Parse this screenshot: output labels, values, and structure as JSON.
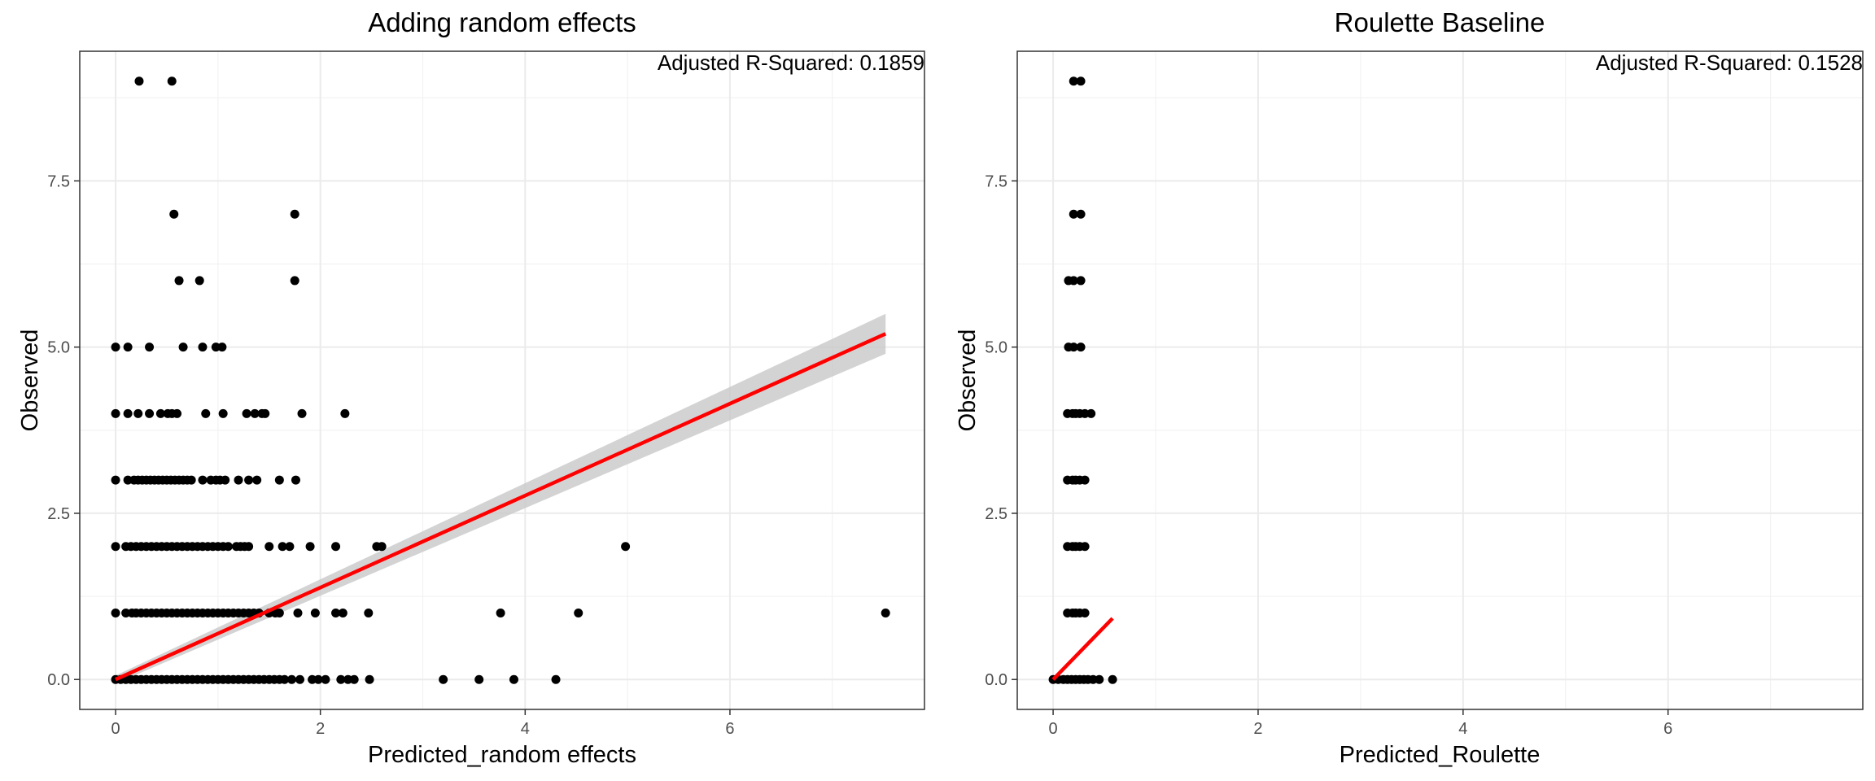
{
  "chart_data": [
    {
      "type": "scatter",
      "title": "Adding random effects",
      "xlabel": "Predicted_random effects",
      "ylabel": "Observed",
      "annotation": "Adjusted R-Squared: 0.1859",
      "xlim": [
        -0.35,
        7.9
      ],
      "ylim": [
        -0.45,
        9.45
      ],
      "xticks": [
        0,
        2,
        4,
        6
      ],
      "xtick_labels": [
        "0",
        "2",
        "4",
        "6"
      ],
      "yticks": [
        0,
        2.5,
        5,
        7.5
      ],
      "ytick_labels": [
        "0.0",
        "2.5",
        "5.0",
        "7.5"
      ],
      "grid": true,
      "point_color": "#000000",
      "fit": {
        "x": [
          0,
          7.52
        ],
        "y": [
          0,
          5.2
        ],
        "color": "#ff0000",
        "ci_color": "#c8c8c8",
        "ci_lower": [
          -0.06,
          4.9
        ],
        "ci_upper": [
          0.06,
          5.5
        ]
      },
      "points": [
        [
          0.23,
          9
        ],
        [
          0.55,
          9
        ],
        [
          0.57,
          7
        ],
        [
          1.75,
          7
        ],
        [
          0.62,
          6
        ],
        [
          0.82,
          6
        ],
        [
          1.75,
          6
        ],
        [
          0,
          5
        ],
        [
          0.12,
          5
        ],
        [
          0.33,
          5
        ],
        [
          0.66,
          5
        ],
        [
          0.85,
          5
        ],
        [
          0.98,
          5
        ],
        [
          1.04,
          5
        ],
        [
          0,
          4
        ],
        [
          0.12,
          4
        ],
        [
          0.22,
          4
        ],
        [
          0.33,
          4
        ],
        [
          0.44,
          4
        ],
        [
          0.51,
          4
        ],
        [
          0.55,
          4
        ],
        [
          0.6,
          4
        ],
        [
          0.88,
          4
        ],
        [
          1.05,
          4
        ],
        [
          1.28,
          4
        ],
        [
          1.36,
          4
        ],
        [
          1.43,
          4
        ],
        [
          1.46,
          4
        ],
        [
          1.82,
          4
        ],
        [
          2.24,
          4
        ],
        [
          0,
          3
        ],
        [
          0.12,
          3
        ],
        [
          0.18,
          3
        ],
        [
          0.22,
          3
        ],
        [
          0.26,
          3
        ],
        [
          0.3,
          3
        ],
        [
          0.34,
          3
        ],
        [
          0.38,
          3
        ],
        [
          0.42,
          3
        ],
        [
          0.46,
          3
        ],
        [
          0.5,
          3
        ],
        [
          0.54,
          3
        ],
        [
          0.58,
          3
        ],
        [
          0.62,
          3
        ],
        [
          0.66,
          3
        ],
        [
          0.7,
          3
        ],
        [
          0.74,
          3
        ],
        [
          0.85,
          3
        ],
        [
          0.93,
          3
        ],
        [
          0.98,
          3
        ],
        [
          1.02,
          3
        ],
        [
          1.07,
          3
        ],
        [
          1.2,
          3
        ],
        [
          1.3,
          3
        ],
        [
          1.38,
          3
        ],
        [
          1.6,
          3
        ],
        [
          1.76,
          3
        ],
        [
          0,
          2
        ],
        [
          0.1,
          2
        ],
        [
          0.15,
          2
        ],
        [
          0.2,
          2
        ],
        [
          0.25,
          2
        ],
        [
          0.3,
          2
        ],
        [
          0.35,
          2
        ],
        [
          0.4,
          2
        ],
        [
          0.45,
          2
        ],
        [
          0.5,
          2
        ],
        [
          0.55,
          2
        ],
        [
          0.6,
          2
        ],
        [
          0.65,
          2
        ],
        [
          0.7,
          2
        ],
        [
          0.75,
          2
        ],
        [
          0.8,
          2
        ],
        [
          0.85,
          2
        ],
        [
          0.9,
          2
        ],
        [
          0.95,
          2
        ],
        [
          1.0,
          2
        ],
        [
          1.05,
          2
        ],
        [
          1.1,
          2
        ],
        [
          1.18,
          2
        ],
        [
          1.22,
          2
        ],
        [
          1.26,
          2
        ],
        [
          1.3,
          2
        ],
        [
          1.5,
          2
        ],
        [
          1.63,
          2
        ],
        [
          1.7,
          2
        ],
        [
          1.9,
          2
        ],
        [
          2.15,
          2
        ],
        [
          2.55,
          2
        ],
        [
          2.6,
          2
        ],
        [
          4.98,
          2
        ],
        [
          0,
          1
        ],
        [
          0.1,
          1
        ],
        [
          0.16,
          1
        ],
        [
          0.2,
          1
        ],
        [
          0.25,
          1
        ],
        [
          0.3,
          1
        ],
        [
          0.35,
          1
        ],
        [
          0.4,
          1
        ],
        [
          0.45,
          1
        ],
        [
          0.5,
          1
        ],
        [
          0.55,
          1
        ],
        [
          0.6,
          1
        ],
        [
          0.65,
          1
        ],
        [
          0.7,
          1
        ],
        [
          0.75,
          1
        ],
        [
          0.8,
          1
        ],
        [
          0.85,
          1
        ],
        [
          0.9,
          1
        ],
        [
          0.95,
          1
        ],
        [
          1.0,
          1
        ],
        [
          1.05,
          1
        ],
        [
          1.1,
          1
        ],
        [
          1.15,
          1
        ],
        [
          1.2,
          1
        ],
        [
          1.25,
          1
        ],
        [
          1.3,
          1
        ],
        [
          1.35,
          1
        ],
        [
          1.4,
          1
        ],
        [
          1.5,
          1
        ],
        [
          1.56,
          1
        ],
        [
          1.6,
          1
        ],
        [
          1.78,
          1
        ],
        [
          1.95,
          1
        ],
        [
          2.15,
          1
        ],
        [
          2.22,
          1
        ],
        [
          2.47,
          1
        ],
        [
          3.76,
          1
        ],
        [
          4.52,
          1
        ],
        [
          7.52,
          1
        ],
        [
          0,
          0
        ],
        [
          0.05,
          0
        ],
        [
          0.1,
          0
        ],
        [
          0.15,
          0
        ],
        [
          0.2,
          0
        ],
        [
          0.25,
          0
        ],
        [
          0.3,
          0
        ],
        [
          0.35,
          0
        ],
        [
          0.4,
          0
        ],
        [
          0.45,
          0
        ],
        [
          0.5,
          0
        ],
        [
          0.55,
          0
        ],
        [
          0.6,
          0
        ],
        [
          0.65,
          0
        ],
        [
          0.7,
          0
        ],
        [
          0.75,
          0
        ],
        [
          0.8,
          0
        ],
        [
          0.85,
          0
        ],
        [
          0.9,
          0
        ],
        [
          0.95,
          0
        ],
        [
          1.0,
          0
        ],
        [
          1.05,
          0
        ],
        [
          1.1,
          0
        ],
        [
          1.15,
          0
        ],
        [
          1.2,
          0
        ],
        [
          1.25,
          0
        ],
        [
          1.3,
          0
        ],
        [
          1.35,
          0
        ],
        [
          1.4,
          0
        ],
        [
          1.45,
          0
        ],
        [
          1.5,
          0
        ],
        [
          1.55,
          0
        ],
        [
          1.6,
          0
        ],
        [
          1.65,
          0
        ],
        [
          1.72,
          0
        ],
        [
          1.8,
          0
        ],
        [
          1.92,
          0
        ],
        [
          1.98,
          0
        ],
        [
          2.05,
          0
        ],
        [
          2.2,
          0
        ],
        [
          2.27,
          0
        ],
        [
          2.33,
          0
        ],
        [
          2.48,
          0
        ],
        [
          3.2,
          0
        ],
        [
          3.55,
          0
        ],
        [
          3.89,
          0
        ],
        [
          4.3,
          0
        ]
      ]
    },
    {
      "type": "scatter",
      "title": "Roulette Baseline",
      "xlabel": "Predicted_Roulette",
      "ylabel": "Observed",
      "annotation": "Adjusted R-Squared: 0.1528",
      "xlim": [
        -0.35,
        7.9
      ],
      "ylim": [
        -0.45,
        9.45
      ],
      "xticks": [
        0,
        2,
        4,
        6
      ],
      "xtick_labels": [
        "0",
        "2",
        "4",
        "6"
      ],
      "yticks": [
        0,
        2.5,
        5,
        7.5
      ],
      "ytick_labels": [
        "0.0",
        "2.5",
        "5.0",
        "7.5"
      ],
      "grid": true,
      "point_color": "#000000",
      "fit": {
        "x": [
          0,
          0.58
        ],
        "y": [
          0,
          0.92
        ],
        "color": "#ff0000"
      },
      "points": [
        [
          0.2,
          9
        ],
        [
          0.27,
          9
        ],
        [
          0.2,
          7
        ],
        [
          0.27,
          7
        ],
        [
          0.15,
          6
        ],
        [
          0.2,
          6
        ],
        [
          0.27,
          6
        ],
        [
          0.15,
          5
        ],
        [
          0.2,
          5
        ],
        [
          0.27,
          5
        ],
        [
          0.14,
          4
        ],
        [
          0.19,
          4
        ],
        [
          0.22,
          4
        ],
        [
          0.26,
          4
        ],
        [
          0.31,
          4
        ],
        [
          0.37,
          4
        ],
        [
          0.14,
          3
        ],
        [
          0.19,
          3
        ],
        [
          0.22,
          3
        ],
        [
          0.26,
          3
        ],
        [
          0.31,
          3
        ],
        [
          0.14,
          2
        ],
        [
          0.19,
          2
        ],
        [
          0.22,
          2
        ],
        [
          0.26,
          2
        ],
        [
          0.31,
          2
        ],
        [
          0.14,
          1
        ],
        [
          0.19,
          1
        ],
        [
          0.22,
          1
        ],
        [
          0.26,
          1
        ],
        [
          0.31,
          1
        ],
        [
          0,
          0
        ],
        [
          0.05,
          0
        ],
        [
          0.1,
          0
        ],
        [
          0.14,
          0
        ],
        [
          0.18,
          0
        ],
        [
          0.22,
          0
        ],
        [
          0.26,
          0
        ],
        [
          0.3,
          0
        ],
        [
          0.34,
          0
        ],
        [
          0.39,
          0
        ],
        [
          0.45,
          0
        ],
        [
          0.58,
          0
        ]
      ]
    }
  ]
}
